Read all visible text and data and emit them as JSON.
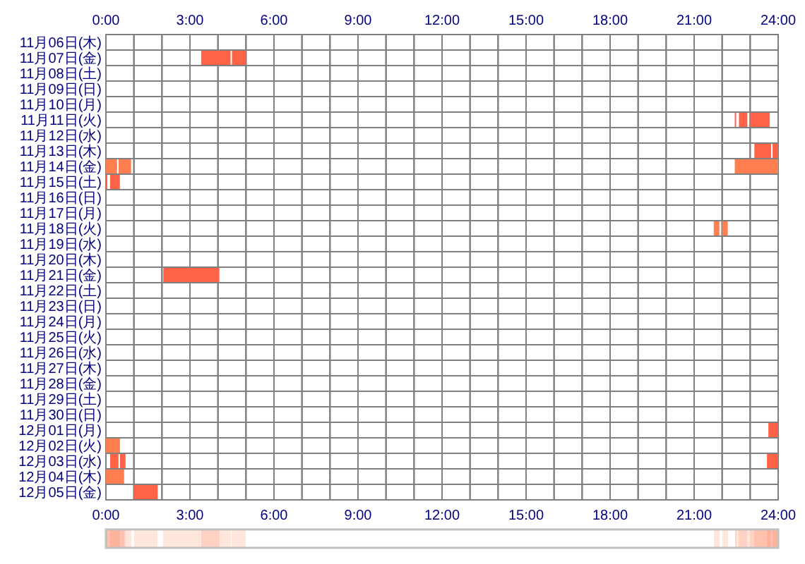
{
  "chart_data": {
    "type": "bar",
    "orientation": "horizontal",
    "grid": true,
    "categories": [
      "11月06日(木)",
      "11月07日(金)",
      "11月08日(土)",
      "11月09日(日)",
      "11月10日(月)",
      "11月11日(火)",
      "11月12日(水)",
      "11月13日(木)",
      "11月14日(金)",
      "11月15日(土)",
      "11月16日(日)",
      "11月17日(月)",
      "11月18日(火)",
      "11月19日(水)",
      "11月20日(木)",
      "11月21日(金)",
      "11月22日(土)",
      "11月23日(日)",
      "11月24日(月)",
      "11月25日(火)",
      "11月26日(水)",
      "11月27日(木)",
      "11月28日(金)",
      "11月29日(土)",
      "11月30日(日)",
      "12月01日(月)",
      "12月02日(火)",
      "12月03日(水)",
      "12月04日(木)",
      "12月05日(金)"
    ],
    "xlim": [
      0,
      24
    ],
    "xticks": [
      {
        "value": 0,
        "label": "0:00"
      },
      {
        "value": 1,
        "label": null
      },
      {
        "value": 2,
        "label": null
      },
      {
        "value": 3,
        "label": "3:00"
      },
      {
        "value": 4,
        "label": null
      },
      {
        "value": 5,
        "label": null
      },
      {
        "value": 6,
        "label": "6:00"
      },
      {
        "value": 7,
        "label": null
      },
      {
        "value": 8,
        "label": null
      },
      {
        "value": 9,
        "label": "9:00"
      },
      {
        "value": 10,
        "label": null
      },
      {
        "value": 11,
        "label": null
      },
      {
        "value": 12,
        "label": "12:00"
      },
      {
        "value": 13,
        "label": null
      },
      {
        "value": 14,
        "label": null
      },
      {
        "value": 15,
        "label": "15:00"
      },
      {
        "value": 16,
        "label": null
      },
      {
        "value": 17,
        "label": null
      },
      {
        "value": 18,
        "label": "18:00"
      },
      {
        "value": 19,
        "label": null
      },
      {
        "value": 20,
        "label": null
      },
      {
        "value": 21,
        "label": "21:00"
      },
      {
        "value": 22,
        "label": null
      },
      {
        "value": 23,
        "label": null
      },
      {
        "value": 24,
        "label": "24:00"
      }
    ],
    "x2lim": [
      0,
      24
    ],
    "x2ticks": [
      {
        "value": 0,
        "label": "0:00"
      },
      {
        "value": 1,
        "label": null
      },
      {
        "value": 2,
        "label": null
      },
      {
        "value": 3,
        "label": "3:00"
      },
      {
        "value": 4,
        "label": null
      },
      {
        "value": 5,
        "label": null
      },
      {
        "value": 6,
        "label": "6:00"
      },
      {
        "value": 7,
        "label": null
      },
      {
        "value": 8,
        "label": null
      },
      {
        "value": 9,
        "label": "9:00"
      },
      {
        "value": 10,
        "label": null
      },
      {
        "value": 11,
        "label": null
      },
      {
        "value": 12,
        "label": "12:00"
      },
      {
        "value": 13,
        "label": null
      },
      {
        "value": 14,
        "label": null
      },
      {
        "value": 15,
        "label": "15:00"
      },
      {
        "value": 16,
        "label": null
      },
      {
        "value": 17,
        "label": null
      },
      {
        "value": 18,
        "label": "18:00"
      },
      {
        "value": 19,
        "label": null
      },
      {
        "value": 20,
        "label": null
      },
      {
        "value": 21,
        "label": "21:00"
      },
      {
        "value": 22,
        "label": null
      },
      {
        "value": 23,
        "label": null
      },
      {
        "value": 24,
        "label": "24:00"
      }
    ],
    "series": [
      {
        "base": [
          null,
          3.4,
          null,
          null,
          null,
          22.45,
          null,
          23.15,
          0,
          0,
          null,
          null,
          21.7,
          null,
          null,
          2.05,
          null,
          null,
          null,
          null,
          null,
          null,
          null,
          null,
          null,
          23.65,
          0,
          0.15,
          0,
          1.0
        ],
        "values": [
          null,
          1.05,
          null,
          null,
          null,
          0.05,
          null,
          0.6,
          0.4,
          0.05,
          null,
          null,
          0.2,
          null,
          null,
          2.0,
          null,
          null,
          null,
          null,
          null,
          null,
          null,
          null,
          null,
          0.35,
          0.5,
          0.3,
          0.65,
          0.85
        ],
        "colors": [
          null,
          "#ff6347",
          null,
          null,
          null,
          "#ff6347",
          null,
          "#ff6347",
          "#ff7f50",
          "#ff6347",
          null,
          null,
          "#ff7f50",
          null,
          null,
          "#ff6347",
          null,
          null,
          null,
          null,
          null,
          null,
          null,
          null,
          null,
          "#ff6347",
          "#ff7f50",
          "#ff6347",
          "#ff7f50",
          "#ff6347"
        ]
      },
      {
        "base": [
          null,
          4.5,
          null,
          null,
          null,
          22.6,
          null,
          23.8,
          0.45,
          0.15,
          null,
          null,
          22.0,
          null,
          null,
          null,
          null,
          null,
          null,
          null,
          null,
          null,
          null,
          null,
          null,
          null,
          null,
          0.5,
          null,
          null
        ],
        "values": [
          null,
          0.5,
          null,
          null,
          null,
          0.3,
          null,
          0.2,
          0.45,
          0.35,
          null,
          null,
          0.2,
          null,
          null,
          null,
          null,
          null,
          null,
          null,
          null,
          null,
          null,
          null,
          null,
          null,
          null,
          0.2,
          null,
          null
        ],
        "colors": [
          null,
          "#ff6347",
          null,
          null,
          null,
          "#ff6347",
          null,
          "#ff6347",
          "#ff7f50",
          "#ff6347",
          null,
          null,
          "#ff7f50",
          null,
          null,
          null,
          null,
          null,
          null,
          null,
          null,
          null,
          null,
          null,
          null,
          null,
          null,
          "#ff6347",
          null,
          null
        ]
      },
      {
        "base": [
          null,
          null,
          null,
          null,
          null,
          23.0,
          null,
          null,
          22.45,
          null,
          null,
          null,
          null,
          null,
          null,
          null,
          null,
          null,
          null,
          null,
          null,
          null,
          null,
          null,
          null,
          null,
          null,
          23.6,
          null,
          null
        ],
        "values": [
          null,
          null,
          null,
          null,
          null,
          0.7,
          null,
          null,
          1.55,
          null,
          null,
          null,
          null,
          null,
          null,
          null,
          null,
          null,
          null,
          null,
          null,
          null,
          null,
          null,
          null,
          null,
          null,
          0.4,
          null,
          null
        ],
        "colors": [
          null,
          null,
          null,
          null,
          null,
          "#ff6347",
          null,
          null,
          "#ff7f50",
          null,
          null,
          null,
          null,
          null,
          null,
          null,
          null,
          null,
          null,
          null,
          null,
          null,
          null,
          null,
          null,
          null,
          null,
          "#ff6347",
          null,
          null
        ]
      }
    ]
  }
}
